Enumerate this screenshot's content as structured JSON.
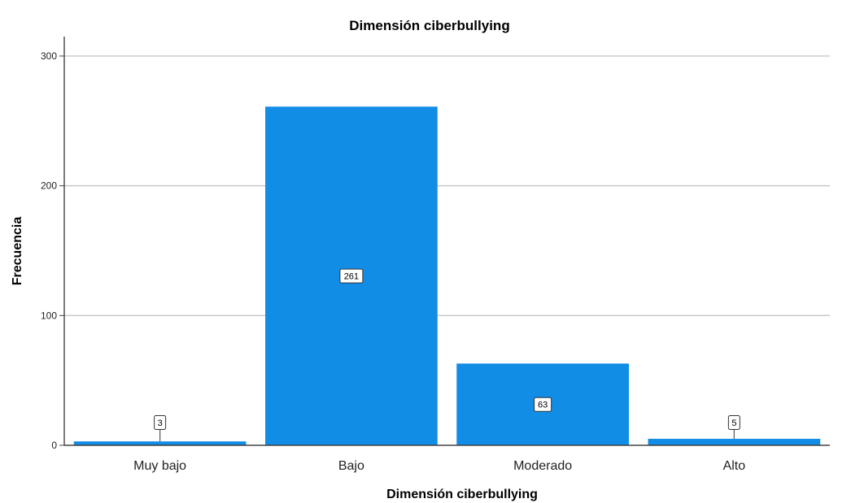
{
  "chart_data": {
    "type": "bar",
    "title": "Dimensión ciberbullying",
    "xlabel": "Dimensión ciberbullying",
    "ylabel": "Frecuencia",
    "categories": [
      "Muy bajo",
      "Bajo",
      "Moderado",
      "Alto"
    ],
    "values": [
      3,
      261,
      63,
      5
    ],
    "data_labels": [
      "3",
      "261",
      "63",
      "5"
    ],
    "ylim": [
      0,
      315
    ],
    "yticks": [
      0,
      100,
      200,
      300
    ],
    "ytick_labels": [
      "0",
      "100",
      "200",
      "300"
    ],
    "grid": true,
    "legend": "none",
    "bar_color": "#118de6"
  }
}
